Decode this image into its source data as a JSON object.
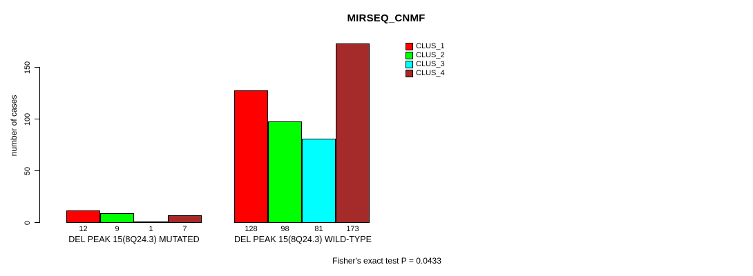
{
  "chart_data": {
    "type": "bar",
    "title": "MIRSEQ_CNMF",
    "ylabel": "number of cases",
    "yticks": [
      0,
      50,
      100,
      150
    ],
    "ylim": [
      0,
      175
    ],
    "grid": false,
    "legend_position": "top-right",
    "categories": [
      "DEL PEAK 15(8Q24.3) MUTATED",
      "DEL PEAK 15(8Q24.3) WILD-TYPE"
    ],
    "series": [
      {
        "name": "CLUS_1",
        "color": "#FF0000",
        "values": [
          12,
          128
        ]
      },
      {
        "name": "CLUS_2",
        "color": "#00FF00",
        "values": [
          9,
          98
        ]
      },
      {
        "name": "CLUS_3",
        "color": "#00FFFF",
        "values": [
          1,
          81
        ]
      },
      {
        "name": "CLUS_4",
        "color": "#A52A2A",
        "values": [
          7,
          173
        ]
      }
    ],
    "bar_value_labels_shown": true,
    "footer": "Fisher's exact test P = 0.0433"
  }
}
